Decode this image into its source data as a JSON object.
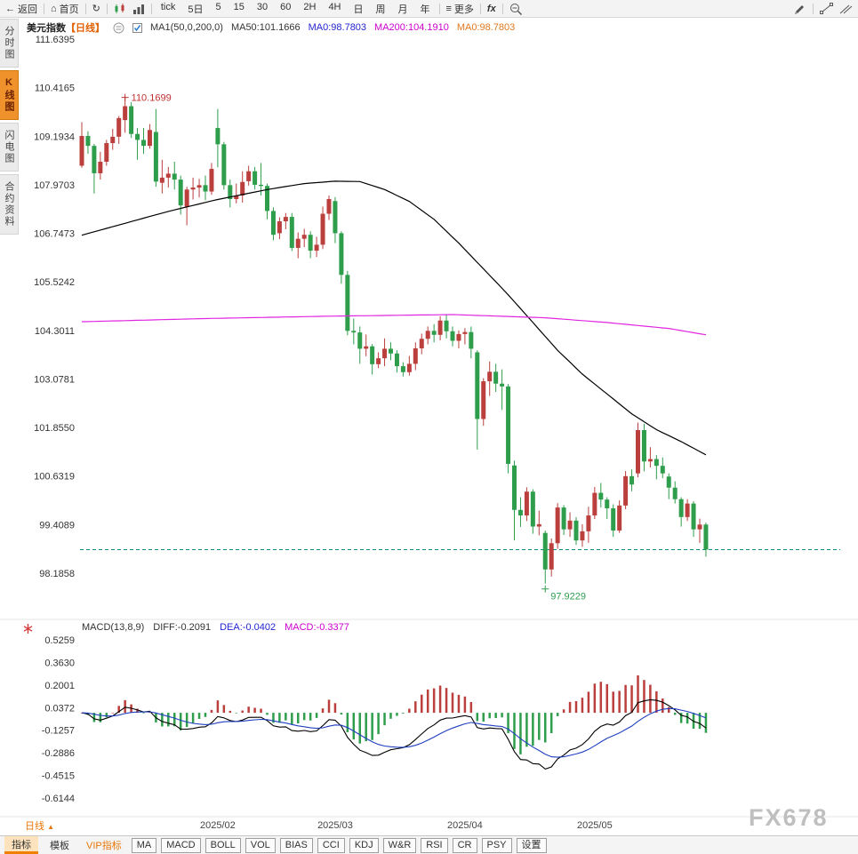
{
  "toolbar": {
    "back_label": "返回",
    "home_label": "首页",
    "intervals": [
      "tick",
      "5日",
      "5",
      "15",
      "30",
      "60",
      "2H",
      "4H",
      "日",
      "周",
      "月",
      "年"
    ],
    "more_label": "更多",
    "fx_label": "fx"
  },
  "sidebar": {
    "items": [
      {
        "label": "分时图",
        "active": false
      },
      {
        "label": "K线图",
        "active": true
      },
      {
        "label": "闪电图",
        "active": false
      },
      {
        "label": "合约资料",
        "active": false
      }
    ]
  },
  "chart_header": {
    "symbol": "美元指数",
    "period": "【日线】",
    "ma_params": "MA1(50,0,200,0)",
    "ma50": "MA50:101.1666",
    "ma0_blue": "MA0:98.7803",
    "ma200": "MA200:104.1910",
    "ma0_orange": "MA0:98.7803"
  },
  "macd_header": {
    "params": "MACD(13,8,9)",
    "diff": "DIFF:-0.2091",
    "dea": "DEA:-0.0402",
    "macd": "MACD:-0.3377"
  },
  "bottom": {
    "period_label": "日线",
    "period_arrow": "▲",
    "tabs": [
      {
        "label": "指标",
        "style": "sel"
      },
      {
        "label": "模板",
        "style": "plain"
      },
      {
        "label": "VIP指标",
        "style": "vip"
      },
      {
        "label": "MA",
        "style": "btn"
      },
      {
        "label": "MACD",
        "style": "btn"
      },
      {
        "label": "BOLL",
        "style": "btn"
      },
      {
        "label": "VOL",
        "style": "btn"
      },
      {
        "label": "BIAS",
        "style": "btn"
      },
      {
        "label": "CCI",
        "style": "btn"
      },
      {
        "label": "KDJ",
        "style": "btn"
      },
      {
        "label": "W&R",
        "style": "btn"
      },
      {
        "label": "RSI",
        "style": "btn"
      },
      {
        "label": "CR",
        "style": "btn"
      },
      {
        "label": "PSY",
        "style": "btn"
      },
      {
        "label": "设置",
        "style": "btn"
      }
    ]
  },
  "watermark": "FX678",
  "chart_data": {
    "type": "candlestick+macd",
    "title": "美元指数 日线 (US Dollar Index, daily)",
    "y_ticks_main": [
      "111.6395",
      "110.4165",
      "109.1934",
      "107.9703",
      "106.7473",
      "105.5242",
      "104.3011",
      "103.0781",
      "101.8550",
      "100.6319",
      "99.4089",
      "98.1858"
    ],
    "y_ticks_macd": [
      "0.5259",
      "0.3630",
      "0.2001",
      "0.0372",
      "-0.1257",
      "-0.2886",
      "-0.4515",
      "-0.6144"
    ],
    "x_ticks": [
      "2025/02",
      "2025/03",
      "2025/04",
      "2025/05"
    ],
    "last_price": 98.7803,
    "high_annotation": {
      "value": "110.1699",
      "color": "#c03030"
    },
    "low_annotation": {
      "value": "97.9229",
      "color": "#2e9e50"
    },
    "colors": {
      "up": "#bb3f3c",
      "down": "#2f9e4c",
      "ma50": "#000000",
      "ma200": "#e026e0",
      "diff": "#000000",
      "dea": "#1f3fbf",
      "last_price_line": "#009080"
    },
    "candles": [
      [
        "2025/01/02",
        108.45,
        109.55,
        108.4,
        109.2
      ],
      [
        "2025/01/03",
        109.2,
        109.32,
        108.75,
        108.95
      ],
      [
        "2025/01/06",
        108.95,
        109.0,
        107.75,
        108.26
      ],
      [
        "2025/01/07",
        108.26,
        108.8,
        108.1,
        108.55
      ],
      [
        "2025/01/08",
        108.55,
        109.1,
        108.45,
        109.02
      ],
      [
        "2025/01/09",
        109.02,
        109.38,
        108.85,
        109.18
      ],
      [
        "2025/01/10",
        109.18,
        109.7,
        109.0,
        109.65
      ],
      [
        "2025/01/13",
        109.6,
        110.1699,
        109.28,
        109.95
      ],
      [
        "2025/01/14",
        109.95,
        110.05,
        109.15,
        109.25
      ],
      [
        "2025/01/15",
        109.25,
        109.4,
        108.6,
        109.1
      ],
      [
        "2025/01/16",
        109.1,
        109.4,
        108.75,
        108.95
      ],
      [
        "2025/01/17",
        108.95,
        109.5,
        108.88,
        109.35
      ],
      [
        "2025/01/20",
        109.3,
        109.88,
        107.92,
        108.05
      ],
      [
        "2025/01/21",
        108.02,
        108.6,
        107.75,
        108.15
      ],
      [
        "2025/01/22",
        108.15,
        108.42,
        107.9,
        108.25
      ],
      [
        "2025/01/23",
        108.25,
        108.55,
        107.85,
        108.1
      ],
      [
        "2025/01/24",
        108.1,
        108.2,
        107.22,
        107.45
      ],
      [
        "2025/01/27",
        107.42,
        107.92,
        106.95,
        107.85
      ],
      [
        "2025/01/28",
        107.85,
        108.15,
        107.6,
        107.9
      ],
      [
        "2025/01/29",
        107.9,
        108.12,
        107.65,
        107.96
      ],
      [
        "2025/01/30",
        107.96,
        108.2,
        107.58,
        107.8
      ],
      [
        "2025/01/31",
        107.8,
        108.52,
        107.72,
        108.37
      ],
      [
        "2025/02/03",
        109.4,
        109.88,
        108.41,
        108.99
      ],
      [
        "2025/02/04",
        108.99,
        109.05,
        107.85,
        107.96
      ],
      [
        "2025/02/05",
        107.96,
        108.1,
        107.4,
        107.61
      ],
      [
        "2025/02/06",
        107.61,
        108.0,
        107.5,
        107.7
      ],
      [
        "2025/02/07",
        107.7,
        108.31,
        107.52,
        108.04
      ],
      [
        "2025/02/10",
        108.06,
        108.45,
        107.95,
        108.31
      ],
      [
        "2025/02/11",
        108.31,
        108.42,
        107.85,
        107.97
      ],
      [
        "2025/02/12",
        107.97,
        108.52,
        107.7,
        107.94
      ],
      [
        "2025/02/13",
        107.94,
        108.0,
        107.1,
        107.31
      ],
      [
        "2025/02/14",
        107.31,
        107.4,
        106.57,
        106.71
      ],
      [
        "2025/02/18",
        106.75,
        107.15,
        106.6,
        107.05
      ],
      [
        "2025/02/19",
        107.05,
        107.26,
        106.85,
        107.16
      ],
      [
        "2025/02/20",
        107.16,
        107.26,
        106.3,
        106.38
      ],
      [
        "2025/02/21",
        106.38,
        106.77,
        106.12,
        106.61
      ],
      [
        "2025/02/24",
        106.61,
        106.86,
        106.4,
        106.71
      ],
      [
        "2025/02/25",
        106.71,
        106.8,
        106.12,
        106.31
      ],
      [
        "2025/02/26",
        106.31,
        106.66,
        106.15,
        106.46
      ],
      [
        "2025/02/27",
        106.46,
        107.42,
        106.35,
        107.24
      ],
      [
        "2025/02/28",
        107.24,
        107.7,
        107.08,
        107.61
      ],
      [
        "2025/03/03",
        107.56,
        107.66,
        106.5,
        106.75
      ],
      [
        "2025/03/04",
        106.75,
        106.8,
        105.48,
        105.7
      ],
      [
        "2025/03/05",
        105.7,
        105.8,
        104.18,
        104.29
      ],
      [
        "2025/03/06",
        104.29,
        104.6,
        103.95,
        104.25
      ],
      [
        "2025/03/07",
        104.25,
        104.4,
        103.46,
        103.84
      ],
      [
        "2025/03/10",
        103.84,
        104.2,
        103.65,
        103.9
      ],
      [
        "2025/03/11",
        103.9,
        103.96,
        103.19,
        103.45
      ],
      [
        "2025/03/12",
        103.45,
        103.75,
        103.35,
        103.6
      ],
      [
        "2025/03/13",
        103.6,
        104.1,
        103.4,
        103.84
      ],
      [
        "2025/03/14",
        103.84,
        104.0,
        103.55,
        103.72
      ],
      [
        "2025/03/17",
        103.72,
        103.8,
        103.24,
        103.4
      ],
      [
        "2025/03/18",
        103.4,
        103.5,
        103.14,
        103.25
      ],
      [
        "2025/03/19",
        103.25,
        103.66,
        103.16,
        103.46
      ],
      [
        "2025/03/20",
        103.46,
        104.0,
        103.3,
        103.85
      ],
      [
        "2025/03/21",
        103.85,
        104.22,
        103.7,
        104.09
      ],
      [
        "2025/03/24",
        104.09,
        104.4,
        103.95,
        104.29
      ],
      [
        "2025/03/25",
        104.29,
        104.46,
        104.0,
        104.19
      ],
      [
        "2025/03/26",
        104.19,
        104.66,
        104.05,
        104.55
      ],
      [
        "2025/03/27",
        104.55,
        104.7,
        104.1,
        104.28
      ],
      [
        "2025/03/28",
        104.28,
        104.4,
        103.9,
        104.04
      ],
      [
        "2025/03/31",
        104.04,
        104.3,
        103.85,
        104.21
      ],
      [
        "2025/04/01",
        104.21,
        104.36,
        103.95,
        104.26
      ],
      [
        "2025/04/02",
        104.26,
        104.4,
        103.6,
        103.84
      ],
      [
        "2025/04/03",
        103.75,
        103.8,
        101.3,
        102.07
      ],
      [
        "2025/04/04",
        102.07,
        103.1,
        101.9,
        103.02
      ],
      [
        "2025/04/07",
        103.02,
        103.52,
        102.65,
        103.26
      ],
      [
        "2025/04/08",
        103.26,
        103.46,
        102.75,
        102.96
      ],
      [
        "2025/04/09",
        102.96,
        103.32,
        102.3,
        102.89
      ],
      [
        "2025/04/10",
        102.89,
        102.95,
        100.7,
        100.94
      ],
      [
        "2025/04/11",
        100.9,
        101.02,
        99.01,
        99.78
      ],
      [
        "2025/04/14",
        99.78,
        100.1,
        99.35,
        99.64
      ],
      [
        "2025/04/15",
        99.64,
        100.35,
        99.5,
        100.24
      ],
      [
        "2025/04/16",
        100.24,
        100.3,
        99.18,
        99.36
      ],
      [
        "2025/04/17",
        99.36,
        99.76,
        99.14,
        99.42
      ],
      [
        "2025/04/21",
        99.2,
        99.26,
        97.9229,
        98.28
      ],
      [
        "2025/04/22",
        98.28,
        99.06,
        98.1,
        98.94
      ],
      [
        "2025/04/23",
        98.94,
        99.95,
        98.8,
        99.84
      ],
      [
        "2025/04/24",
        99.84,
        99.9,
        99.15,
        99.29
      ],
      [
        "2025/04/25",
        99.29,
        99.72,
        99.1,
        99.51
      ],
      [
        "2025/04/28",
        99.51,
        99.6,
        98.9,
        99.01
      ],
      [
        "2025/04/29",
        99.01,
        99.42,
        98.85,
        99.24
      ],
      [
        "2025/04/30",
        99.24,
        99.86,
        98.95,
        99.64
      ],
      [
        "2025/05/01",
        99.64,
        100.36,
        99.55,
        100.21
      ],
      [
        "2025/05/02",
        100.21,
        100.46,
        99.84,
        100.04
      ],
      [
        "2025/05/05",
        100.04,
        100.1,
        99.55,
        99.82
      ],
      [
        "2025/05/06",
        99.82,
        99.92,
        99.1,
        99.26
      ],
      [
        "2025/05/07",
        99.26,
        100.02,
        99.2,
        99.89
      ],
      [
        "2025/05/08",
        99.89,
        100.76,
        99.8,
        100.63
      ],
      [
        "2025/05/09",
        100.63,
        100.8,
        100.25,
        100.42
      ],
      [
        "2025/05/12",
        100.7,
        101.98,
        100.6,
        101.79
      ],
      [
        "2025/05/13",
        101.79,
        101.95,
        100.75,
        101.0
      ],
      [
        "2025/05/14",
        101.0,
        101.36,
        100.85,
        101.06
      ],
      [
        "2025/05/15",
        101.06,
        101.16,
        100.55,
        100.89
      ],
      [
        "2025/05/16",
        100.89,
        101.1,
        100.58,
        100.7
      ],
      [
        "2025/05/19",
        100.62,
        100.7,
        100.05,
        100.34
      ],
      [
        "2025/05/20",
        100.34,
        100.5,
        99.94,
        100.05
      ],
      [
        "2025/05/21",
        100.05,
        100.1,
        99.36,
        99.6
      ],
      [
        "2025/05/22",
        99.6,
        100.05,
        99.5,
        99.94
      ],
      [
        "2025/05/23",
        99.94,
        100.0,
        99.1,
        99.29
      ],
      [
        "2025/05/26",
        99.29,
        99.56,
        98.95,
        99.41
      ],
      [
        "2025/05/27",
        99.41,
        99.46,
        98.6,
        98.7803
      ]
    ],
    "ma50_points": [
      [
        0,
        106.7
      ],
      [
        7,
        107.0
      ],
      [
        14,
        107.3
      ],
      [
        22,
        107.6
      ],
      [
        30,
        107.85
      ],
      [
        36,
        108.0
      ],
      [
        41,
        108.06
      ],
      [
        45,
        108.05
      ],
      [
        49,
        107.85
      ],
      [
        53,
        107.55
      ],
      [
        57,
        107.1
      ],
      [
        61,
        106.5
      ],
      [
        65,
        105.85
      ],
      [
        69,
        105.2
      ],
      [
        73,
        104.5
      ],
      [
        77,
        103.8
      ],
      [
        81,
        103.2
      ],
      [
        85,
        102.7
      ],
      [
        89,
        102.2
      ],
      [
        93,
        101.8
      ],
      [
        97,
        101.5
      ],
      [
        101,
        101.1666
      ]
    ],
    "ma200_points": [
      [
        0,
        104.52
      ],
      [
        20,
        104.6
      ],
      [
        40,
        104.66
      ],
      [
        60,
        104.7
      ],
      [
        75,
        104.62
      ],
      [
        85,
        104.5
      ],
      [
        95,
        104.35
      ],
      [
        101,
        104.191
      ]
    ],
    "macd": {
      "params_label": "MACD(13,8,9)",
      "periods": [
        8,
        13,
        9
      ],
      "display_scale": 0.5,
      "diff": -0.2091,
      "dea": -0.0402,
      "macd": -0.3377
    }
  }
}
